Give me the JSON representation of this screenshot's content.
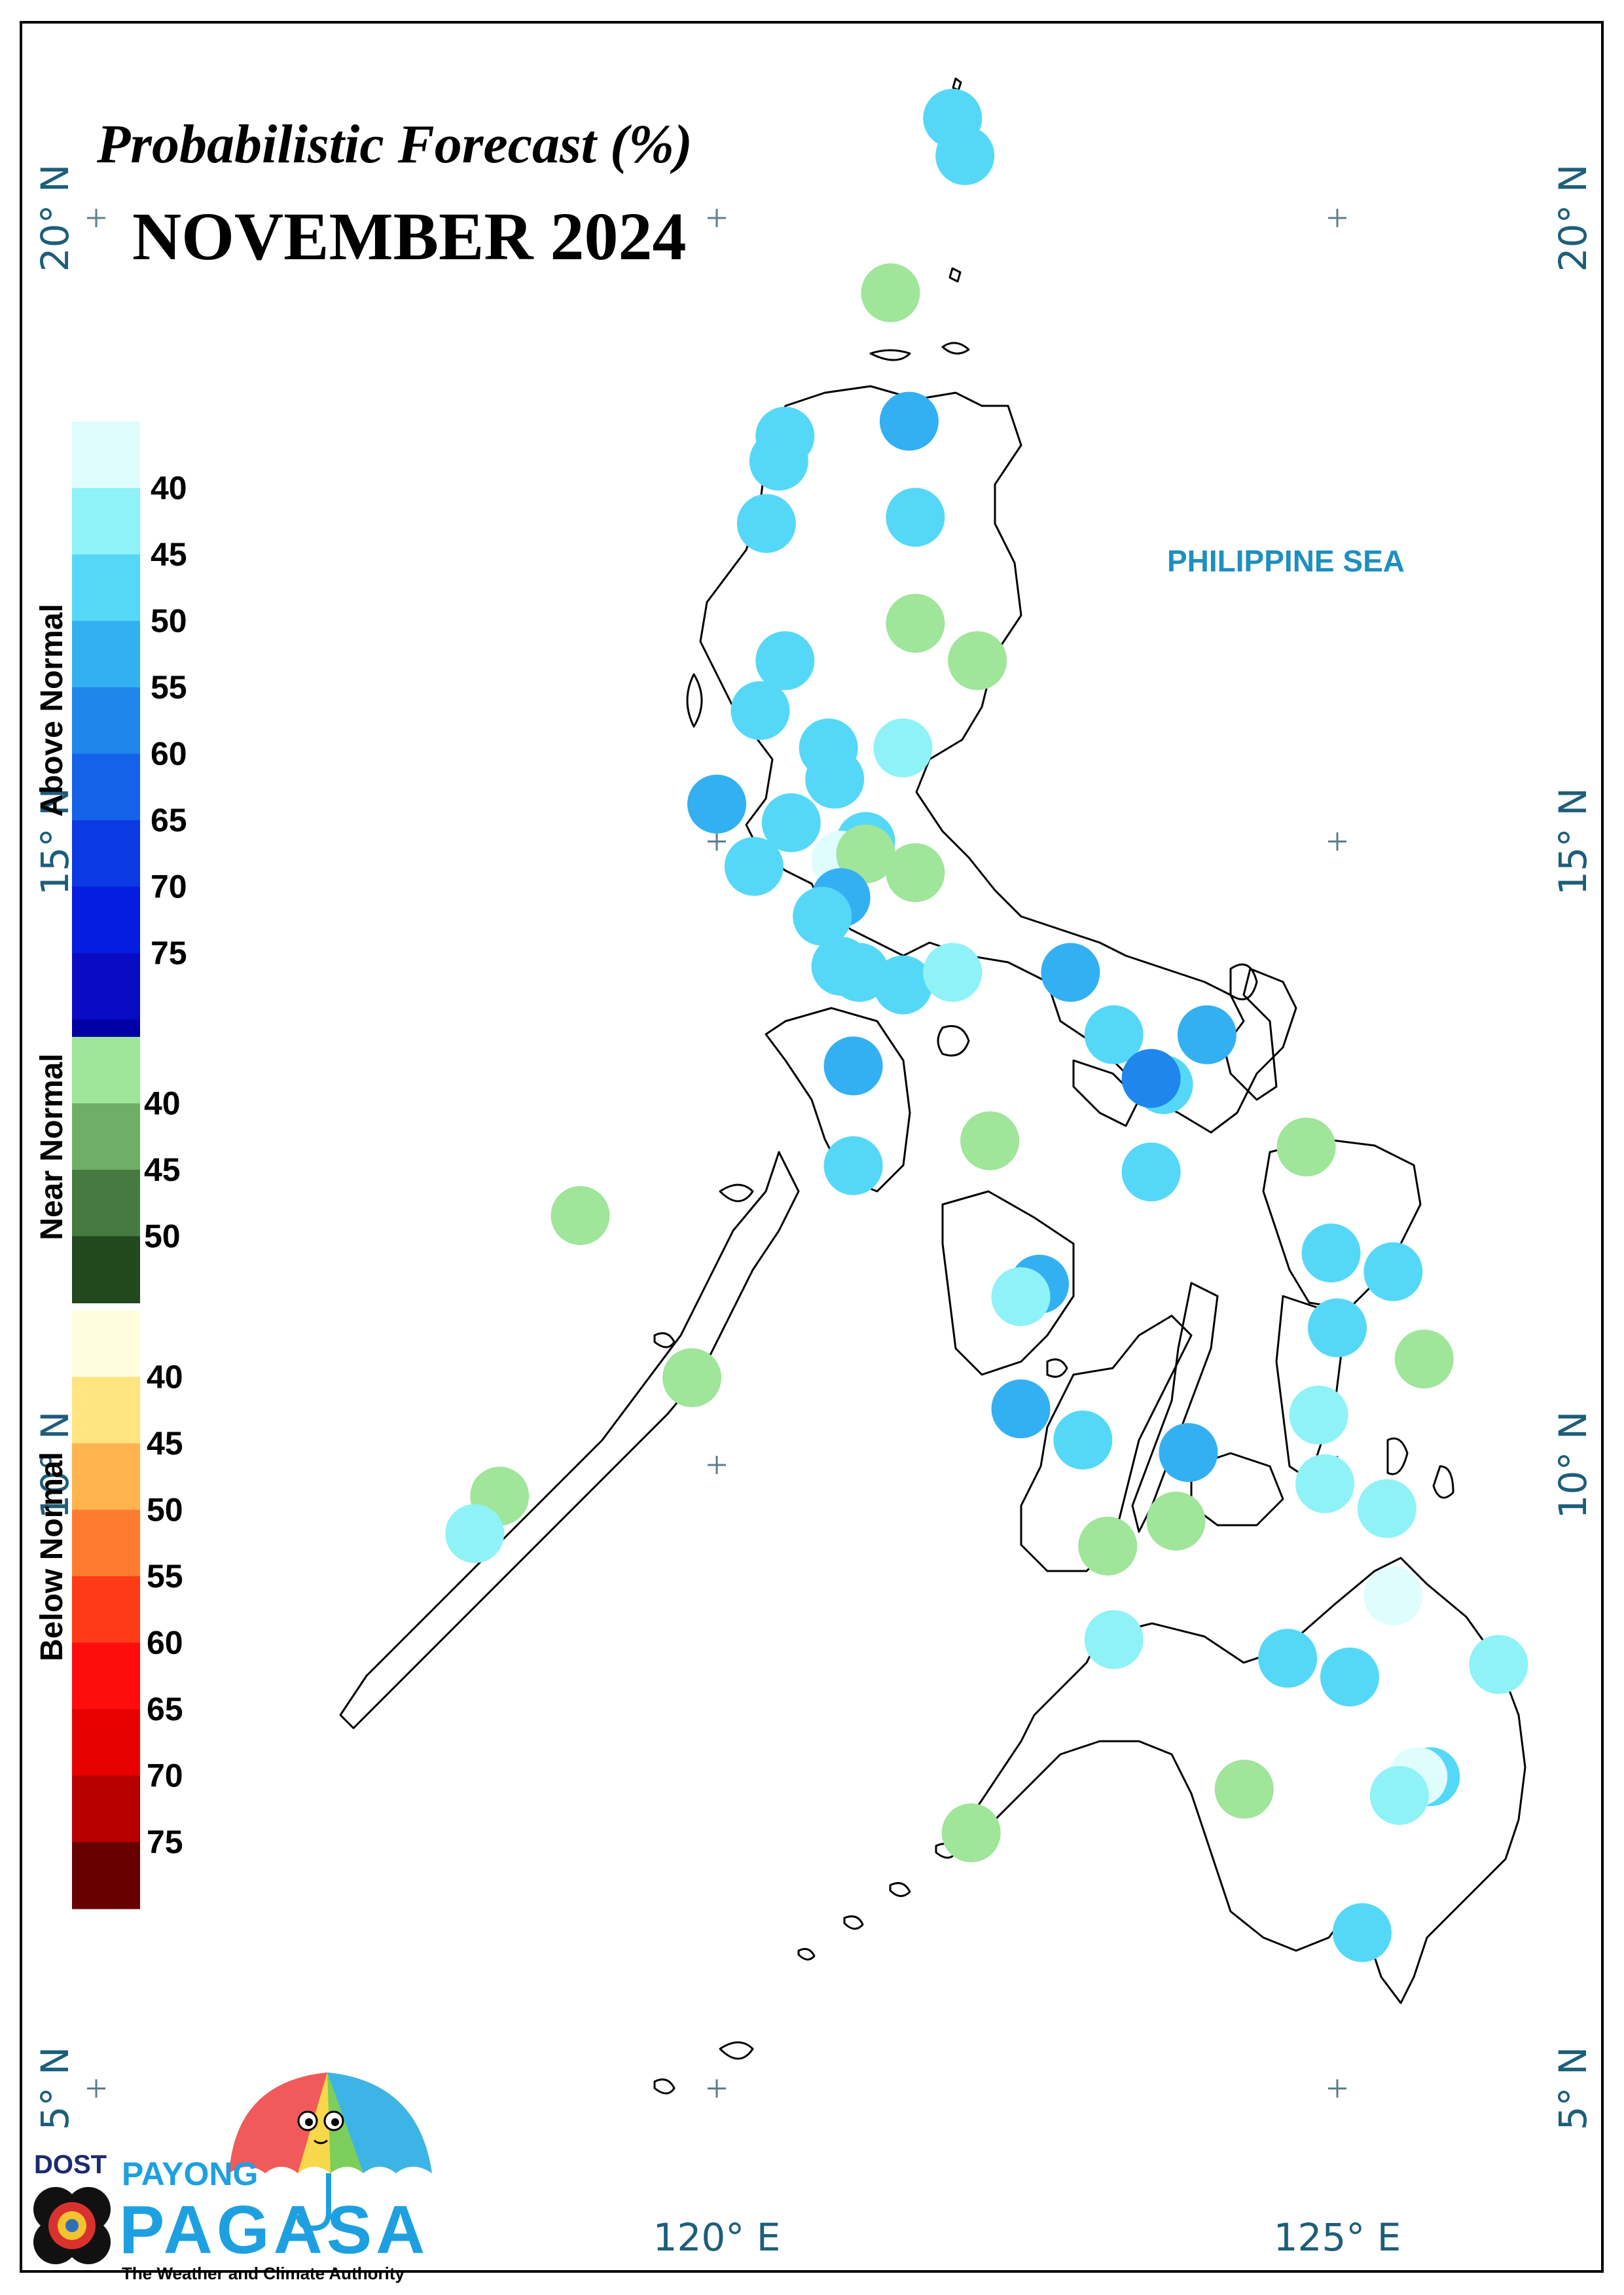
{
  "title": "Probabilistic Forecast (%)",
  "subtitle": "NOVEMBER 2024",
  "sea_label": "PHILIPPINE SEA",
  "lat_labels": [
    {
      "text": "20° N",
      "lat": 20
    },
    {
      "text": "15° N",
      "lat": 15
    },
    {
      "text": "10° N",
      "lat": 10
    },
    {
      "text": "5° N",
      "lat": 5
    }
  ],
  "lon_labels": [
    {
      "text": "120° E",
      "lon": 120
    },
    {
      "text": "125° E",
      "lon": 125
    }
  ],
  "legend": [
    {
      "category": "Above Normal",
      "colors": [
        "#dffdfd",
        "#8ef2f6",
        "#55d8f8",
        "#33b0f2",
        "#1e86ec",
        "#1462e8",
        "#0b3ae2",
        "#061ce0",
        "#0a0cc4",
        "#0000a6"
      ],
      "labels": [
        "40",
        "45",
        "50",
        "55",
        "60",
        "65",
        "70",
        "75"
      ]
    },
    {
      "category": "Near Normal",
      "colors": [
        "#9fe59a",
        "#6fae67",
        "#467a40",
        "#224820"
      ],
      "labels": [
        "40",
        "45",
        "50"
      ]
    },
    {
      "category": "Below Normal",
      "colors": [
        "#fffdde",
        "#ffe480",
        "#ffb44e",
        "#ff7a2e",
        "#ff3a16",
        "#ff0c0c",
        "#e80000",
        "#b80000",
        "#680000"
      ],
      "labels": [
        "40",
        "45",
        "50",
        "55",
        "60",
        "65",
        "70",
        "75"
      ]
    }
  ],
  "stations": [
    {
      "lon": 121.9,
      "lat": 20.8,
      "color": "#55d8f8"
    },
    {
      "lon": 122.0,
      "lat": 20.5,
      "color": "#55d8f8"
    },
    {
      "lon": 121.4,
      "lat": 19.4,
      "color": "#9fe59a"
    },
    {
      "lon": 121.55,
      "lat": 18.37,
      "color": "#33b0f2"
    },
    {
      "lon": 120.55,
      "lat": 18.25,
      "color": "#55d8f8"
    },
    {
      "lon": 120.5,
      "lat": 18.05,
      "color": "#55d8f8"
    },
    {
      "lon": 121.6,
      "lat": 17.6,
      "color": "#55d8f8"
    },
    {
      "lon": 120.4,
      "lat": 17.55,
      "color": "#55d8f8"
    },
    {
      "lon": 121.6,
      "lat": 16.75,
      "color": "#9fe59a"
    },
    {
      "lon": 120.55,
      "lat": 16.45,
      "color": "#55d8f8"
    },
    {
      "lon": 122.1,
      "lat": 16.45,
      "color": "#9fe59a"
    },
    {
      "lon": 120.35,
      "lat": 16.05,
      "color": "#55d8f8"
    },
    {
      "lon": 120.9,
      "lat": 15.75,
      "color": "#55d8f8"
    },
    {
      "lon": 121.5,
      "lat": 15.75,
      "color": "#8ef2f6"
    },
    {
      "lon": 120.95,
      "lat": 15.5,
      "color": "#55d8f8"
    },
    {
      "lon": 120.0,
      "lat": 15.3,
      "color": "#33b0f2"
    },
    {
      "lon": 120.6,
      "lat": 15.15,
      "color": "#55d8f8"
    },
    {
      "lon": 121.2,
      "lat": 15.0,
      "color": "#55d8f8"
    },
    {
      "lon": 121.0,
      "lat": 14.85,
      "color": "#dffdfd"
    },
    {
      "lon": 121.2,
      "lat": 14.9,
      "color": "#9fe59a"
    },
    {
      "lon": 120.3,
      "lat": 14.8,
      "color": "#55d8f8"
    },
    {
      "lon": 121.6,
      "lat": 14.75,
      "color": "#9fe59a"
    },
    {
      "lon": 121.0,
      "lat": 14.55,
      "color": "#33b0f2"
    },
    {
      "lon": 120.85,
      "lat": 14.4,
      "color": "#55d8f8"
    },
    {
      "lon": 121.0,
      "lat": 14.0,
      "color": "#55d8f8"
    },
    {
      "lon": 121.15,
      "lat": 13.95,
      "color": "#55d8f8"
    },
    {
      "lon": 121.5,
      "lat": 13.85,
      "color": "#55d8f8"
    },
    {
      "lon": 121.9,
      "lat": 13.95,
      "color": "#8ef2f6"
    },
    {
      "lon": 122.85,
      "lat": 13.95,
      "color": "#33b0f2"
    },
    {
      "lon": 123.2,
      "lat": 13.45,
      "color": "#55d8f8"
    },
    {
      "lon": 123.95,
      "lat": 13.45,
      "color": "#33b0f2"
    },
    {
      "lon": 121.1,
      "lat": 13.2,
      "color": "#33b0f2"
    },
    {
      "lon": 123.6,
      "lat": 13.05,
      "color": "#55d8f8"
    },
    {
      "lon": 123.5,
      "lat": 13.1,
      "color": "#1e86ec"
    },
    {
      "lon": 122.2,
      "lat": 12.6,
      "color": "#9fe59a"
    },
    {
      "lon": 124.75,
      "lat": 12.55,
      "color": "#9fe59a"
    },
    {
      "lon": 121.1,
      "lat": 12.4,
      "color": "#55d8f8"
    },
    {
      "lon": 123.5,
      "lat": 12.35,
      "color": "#55d8f8"
    },
    {
      "lon": 118.9,
      "lat": 12.0,
      "color": "#9fe59a"
    },
    {
      "lon": 124.95,
      "lat": 11.7,
      "color": "#55d8f8"
    },
    {
      "lon": 125.45,
      "lat": 11.55,
      "color": "#55d8f8"
    },
    {
      "lon": 122.6,
      "lat": 11.45,
      "color": "#33b0f2"
    },
    {
      "lon": 122.45,
      "lat": 11.35,
      "color": "#8ef2f6"
    },
    {
      "lon": 125.0,
      "lat": 11.1,
      "color": "#55d8f8"
    },
    {
      "lon": 125.7,
      "lat": 10.85,
      "color": "#9fe59a"
    },
    {
      "lon": 119.8,
      "lat": 10.7,
      "color": "#9fe59a"
    },
    {
      "lon": 122.45,
      "lat": 10.45,
      "color": "#33b0f2"
    },
    {
      "lon": 124.85,
      "lat": 10.4,
      "color": "#8ef2f6"
    },
    {
      "lon": 122.95,
      "lat": 10.2,
      "color": "#55d8f8"
    },
    {
      "lon": 123.8,
      "lat": 10.1,
      "color": "#33b0f2"
    },
    {
      "lon": 124.9,
      "lat": 9.85,
      "color": "#8ef2f6"
    },
    {
      "lon": 118.25,
      "lat": 9.75,
      "color": "#9fe59a"
    },
    {
      "lon": 125.4,
      "lat": 9.65,
      "color": "#8ef2f6"
    },
    {
      "lon": 123.7,
      "lat": 9.55,
      "color": "#9fe59a"
    },
    {
      "lon": 118.05,
      "lat": 9.45,
      "color": "#8ef2f6"
    },
    {
      "lon": 123.15,
      "lat": 9.35,
      "color": "#9fe59a"
    },
    {
      "lon": 125.45,
      "lat": 8.95,
      "color": "#dffdfd"
    },
    {
      "lon": 123.2,
      "lat": 8.6,
      "color": "#8ef2f6"
    },
    {
      "lon": 124.6,
      "lat": 8.45,
      "color": "#55d8f8"
    },
    {
      "lon": 126.3,
      "lat": 8.4,
      "color": "#8ef2f6"
    },
    {
      "lon": 125.1,
      "lat": 8.3,
      "color": "#55d8f8"
    },
    {
      "lon": 125.75,
      "lat": 7.5,
      "color": "#55d8f8"
    },
    {
      "lon": 125.65,
      "lat": 7.5,
      "color": "#dffdfd"
    },
    {
      "lon": 124.25,
      "lat": 7.4,
      "color": "#9fe59a"
    },
    {
      "lon": 125.5,
      "lat": 7.35,
      "color": "#8ef2f6"
    },
    {
      "lon": 122.05,
      "lat": 7.05,
      "color": "#9fe59a"
    },
    {
      "lon": 125.2,
      "lat": 6.25,
      "color": "#55d8f8"
    }
  ],
  "logo": {
    "dost": "DOST",
    "payong": "PAYONG",
    "pagasa": "PAGASA",
    "tagline": "The Weather and Climate Authority"
  }
}
